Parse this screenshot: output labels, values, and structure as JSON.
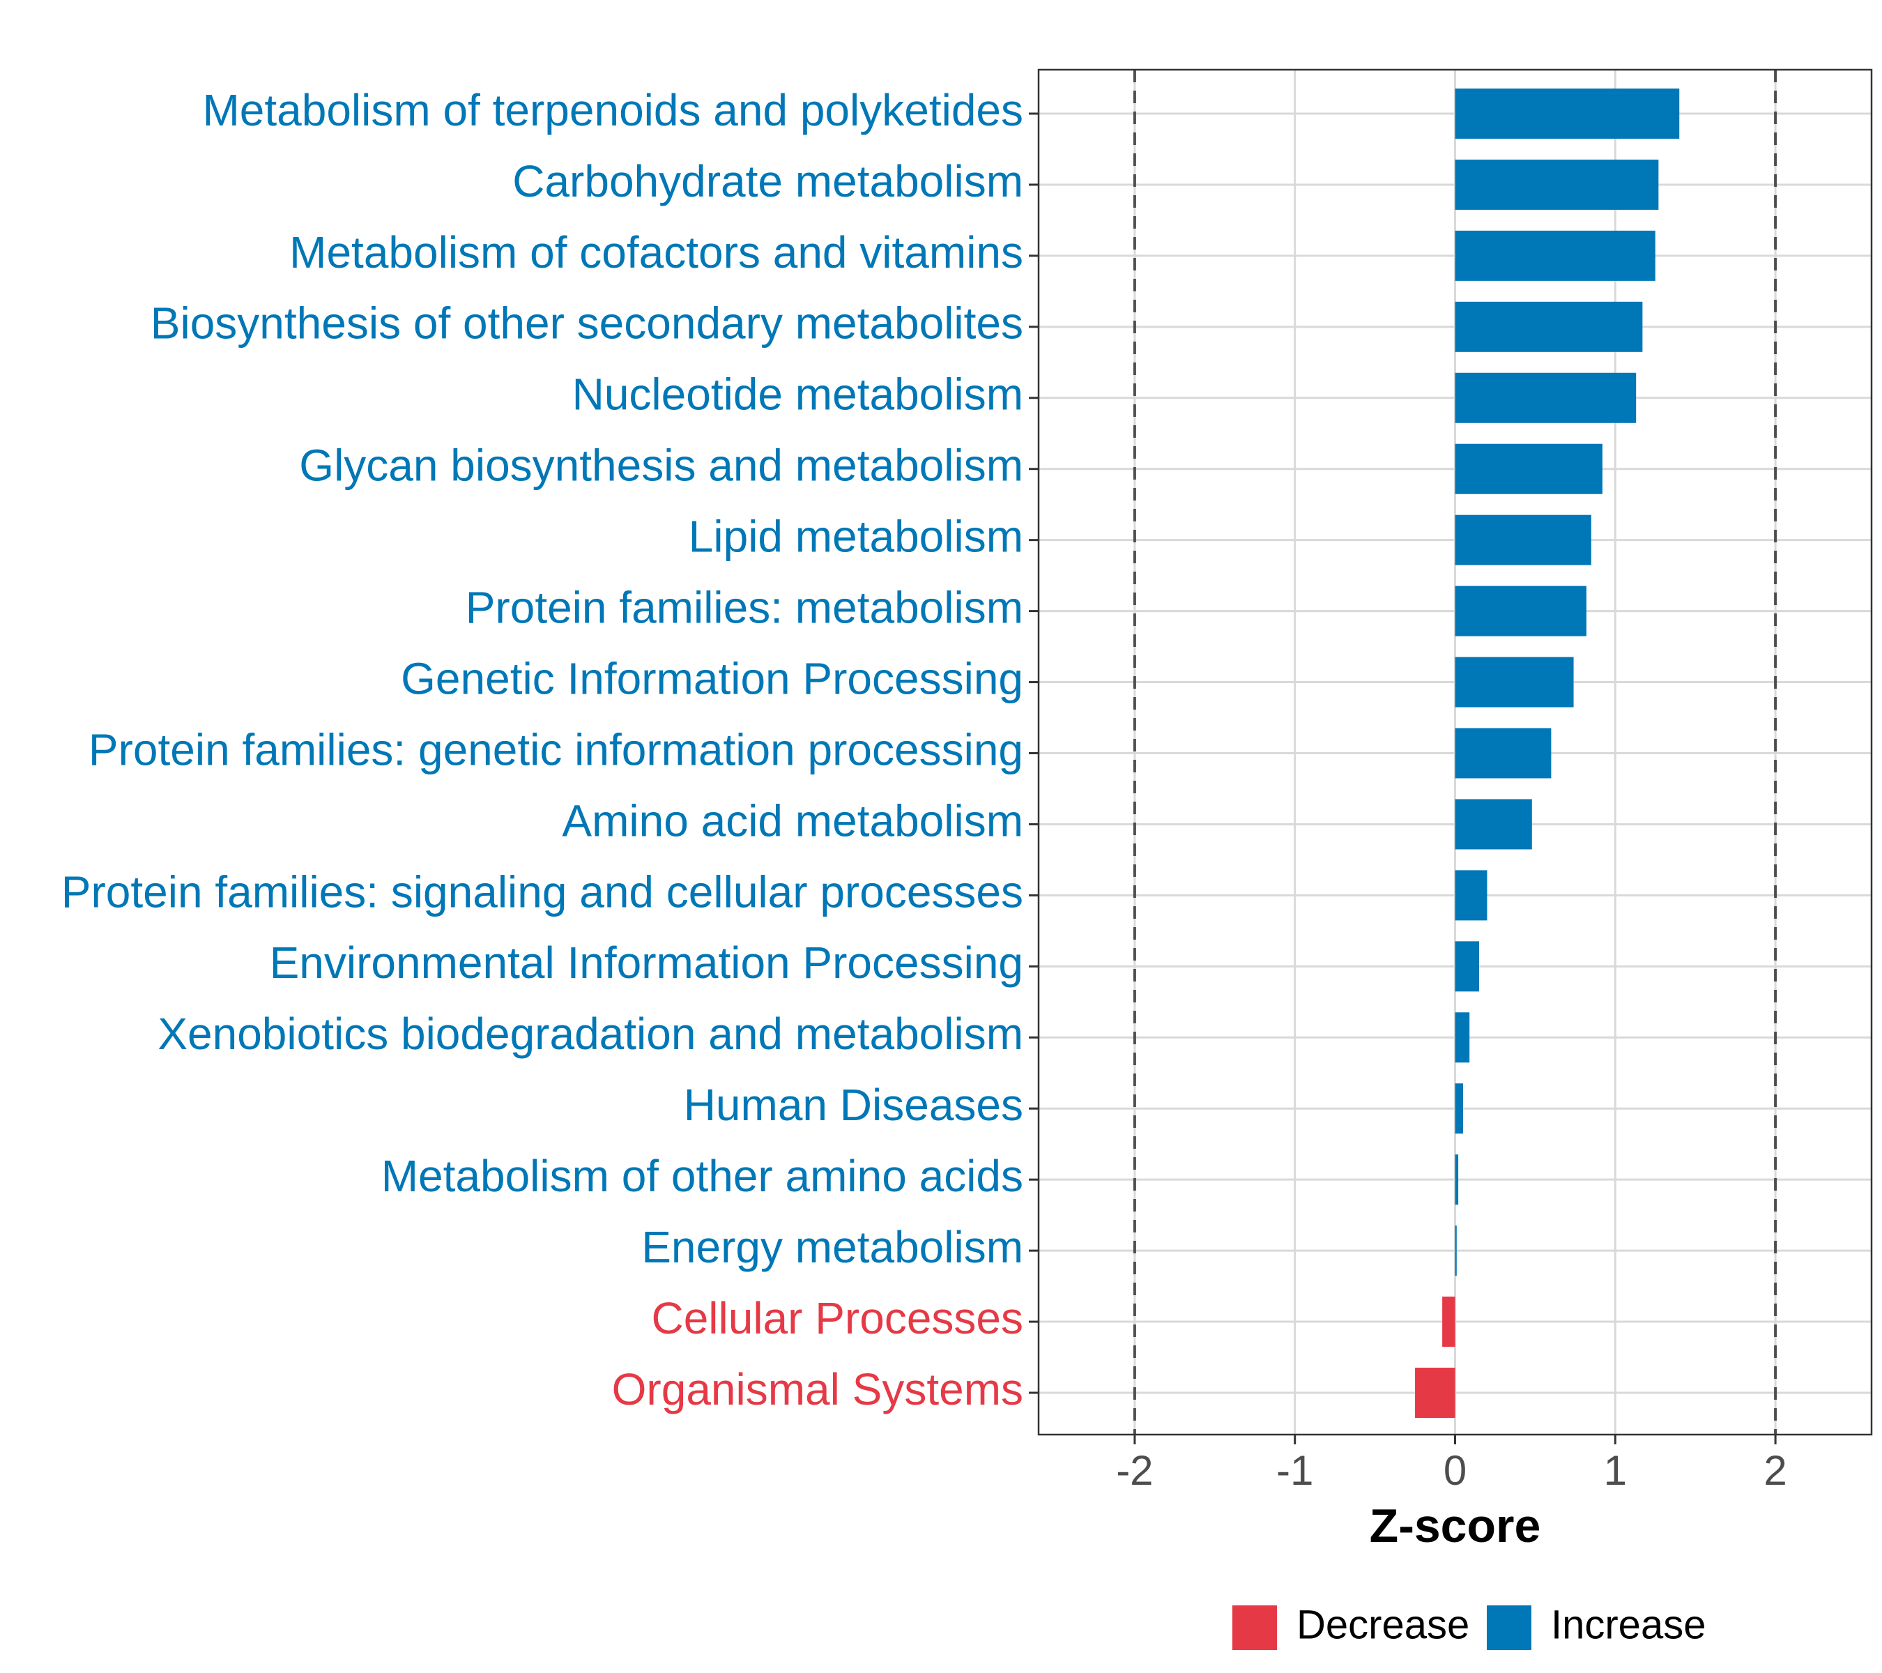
{
  "chart_data": {
    "type": "bar",
    "orientation": "horizontal",
    "xlabel": "Z-score",
    "ylabel": "",
    "xlim": [
      -2.6,
      2.6
    ],
    "x_ticks": [
      "-2",
      "-1",
      "0",
      "1",
      "2"
    ],
    "x_tick_values": [
      -2,
      -1,
      0,
      1,
      2
    ],
    "reference_lines": [
      -2,
      2
    ],
    "grid": true,
    "categories": [
      "Metabolism of terpenoids and polyketides",
      "Carbohydrate metabolism",
      "Metabolism of cofactors and vitamins",
      "Biosynthesis of other secondary metabolites",
      "Nucleotide metabolism",
      "Glycan biosynthesis and metabolism",
      "Lipid metabolism",
      "Protein families: metabolism",
      "Genetic Information Processing",
      "Protein families: genetic information processing",
      "Amino acid metabolism",
      "Protein families: signaling and cellular processes",
      "Environmental Information Processing",
      "Xenobiotics biodegradation and metabolism",
      "Human Diseases",
      "Metabolism of other amino acids",
      "Energy metabolism",
      "Cellular Processes",
      "Organismal Systems"
    ],
    "values": [
      1.4,
      1.27,
      1.25,
      1.17,
      1.13,
      0.92,
      0.85,
      0.82,
      0.74,
      0.6,
      0.48,
      0.2,
      0.15,
      0.09,
      0.05,
      0.02,
      0.01,
      -0.08,
      -0.25
    ],
    "groups": [
      "Increase",
      "Increase",
      "Increase",
      "Increase",
      "Increase",
      "Increase",
      "Increase",
      "Increase",
      "Increase",
      "Increase",
      "Increase",
      "Increase",
      "Increase",
      "Increase",
      "Increase",
      "Increase",
      "Increase",
      "Decrease",
      "Decrease"
    ],
    "legend": {
      "position": "bottom",
      "entries": [
        {
          "label": "Decrease",
          "color": "#e63946"
        },
        {
          "label": "Increase",
          "color": "#0077b6"
        }
      ]
    },
    "colors": {
      "Decrease": "#e63946",
      "Increase": "#0077b6"
    }
  }
}
